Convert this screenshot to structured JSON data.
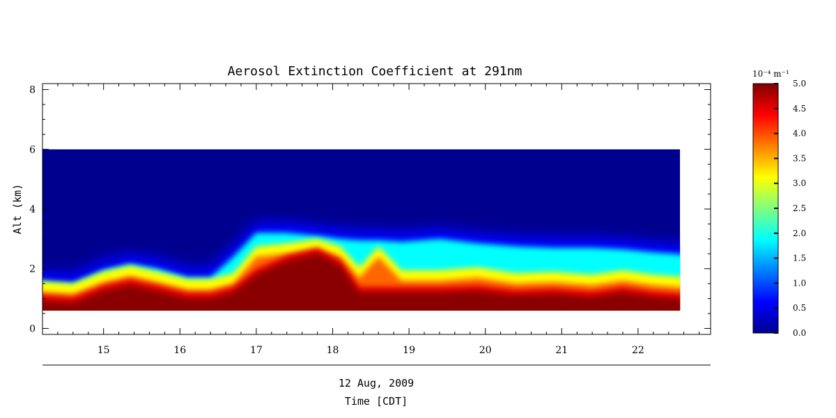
{
  "chart_data": {
    "type": "heatmap",
    "title": "Aerosol Extinction Coefficient at 291nm",
    "xlabel": "Time [CDT]",
    "date_label": "12 Aug, 2009",
    "ylabel": "Alt (km)",
    "xlim": [
      14.2,
      22.95
    ],
    "ylim": [
      -0.2,
      8.2
    ],
    "data_extent": {
      "x": [
        14.2,
        22.55
      ],
      "y": [
        0.6,
        6.0
      ]
    },
    "x_ticks": [
      15,
      16,
      17,
      18,
      19,
      20,
      21,
      22
    ],
    "y_ticks": [
      0,
      2,
      4,
      6,
      8
    ],
    "colorbar": {
      "unit_label": "10⁻⁴ m⁻¹",
      "range": [
        0.0,
        5.0
      ],
      "ticks": [
        "0.0",
        "0.5",
        "1.0",
        "1.5",
        "2.0",
        "2.5",
        "3.0",
        "3.5",
        "4.0",
        "4.5",
        "5.0"
      ]
    },
    "profile_columns": [
      "time",
      "saturated_top_km",
      "orange_top_km",
      "aerosol_top_km"
    ],
    "profiles": [
      [
        14.2,
        1.05,
        1.25,
        1.6
      ],
      [
        14.6,
        0.95,
        1.15,
        1.5
      ],
      [
        15.0,
        1.35,
        1.55,
        1.95
      ],
      [
        15.35,
        1.55,
        1.75,
        2.15
      ],
      [
        15.7,
        1.35,
        1.55,
        2.0
      ],
      [
        16.1,
        1.1,
        1.3,
        1.7
      ],
      [
        16.4,
        1.1,
        1.3,
        1.7
      ],
      [
        16.7,
        1.3,
        1.5,
        2.4
      ],
      [
        17.0,
        1.9,
        2.4,
        3.2
      ],
      [
        17.4,
        2.35,
        2.5,
        3.2
      ],
      [
        17.8,
        2.6,
        2.65,
        3.1
      ],
      [
        18.1,
        2.2,
        2.4,
        3.0
      ],
      [
        18.35,
        1.3,
        1.7,
        2.95
      ],
      [
        18.6,
        1.3,
        2.4,
        2.95
      ],
      [
        18.9,
        1.3,
        1.6,
        2.9
      ],
      [
        19.4,
        1.3,
        1.6,
        3.0
      ],
      [
        19.9,
        1.35,
        1.7,
        2.85
      ],
      [
        20.4,
        1.2,
        1.5,
        2.75
      ],
      [
        20.9,
        1.25,
        1.55,
        2.7
      ],
      [
        21.4,
        1.15,
        1.45,
        2.7
      ],
      [
        21.8,
        1.3,
        1.6,
        2.65
      ],
      [
        22.2,
        1.15,
        1.45,
        2.55
      ],
      [
        22.55,
        1.05,
        1.35,
        2.45
      ]
    ]
  }
}
